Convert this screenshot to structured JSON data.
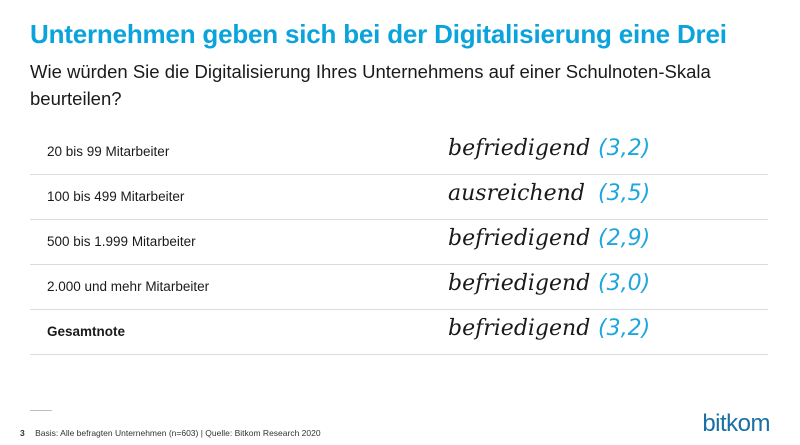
{
  "header": {
    "title": "Unternehmen geben sich bei der Digitalisierung eine Drei",
    "subtitle": "Wie würden Sie die Digitalisierung Ihres Unternehmens auf einer Schulnoten-Skala beurteilen?"
  },
  "chart_data": {
    "type": "table",
    "rows": [
      {
        "label": "20 bis 99 Mitarbeiter",
        "grade": "befriedigend",
        "score": "(3,2)",
        "value": 3.2
      },
      {
        "label": "100 bis 499 Mitarbeiter",
        "grade": "ausreichend",
        "score": "(3,5)",
        "value": 3.5
      },
      {
        "label": "500 bis 1.999 Mitarbeiter",
        "grade": "befriedigend",
        "score": "(2,9)",
        "value": 2.9
      },
      {
        "label": "2.000 und mehr Mitarbeiter",
        "grade": "befriedigend",
        "score": "(3,0)",
        "value": 3.0
      },
      {
        "label": "Gesamtnote",
        "grade": "befriedigend",
        "score": "(3,2)",
        "value": 3.2
      }
    ]
  },
  "footer": {
    "page": "3",
    "source": "Basis: Alle befragten Unternehmen (n=603) | Quelle: Bitkom Research 2020"
  },
  "logo": {
    "text": "bitkom"
  },
  "colors": {
    "accent": "#0aa3dc",
    "logo": "#1a6fa3"
  }
}
